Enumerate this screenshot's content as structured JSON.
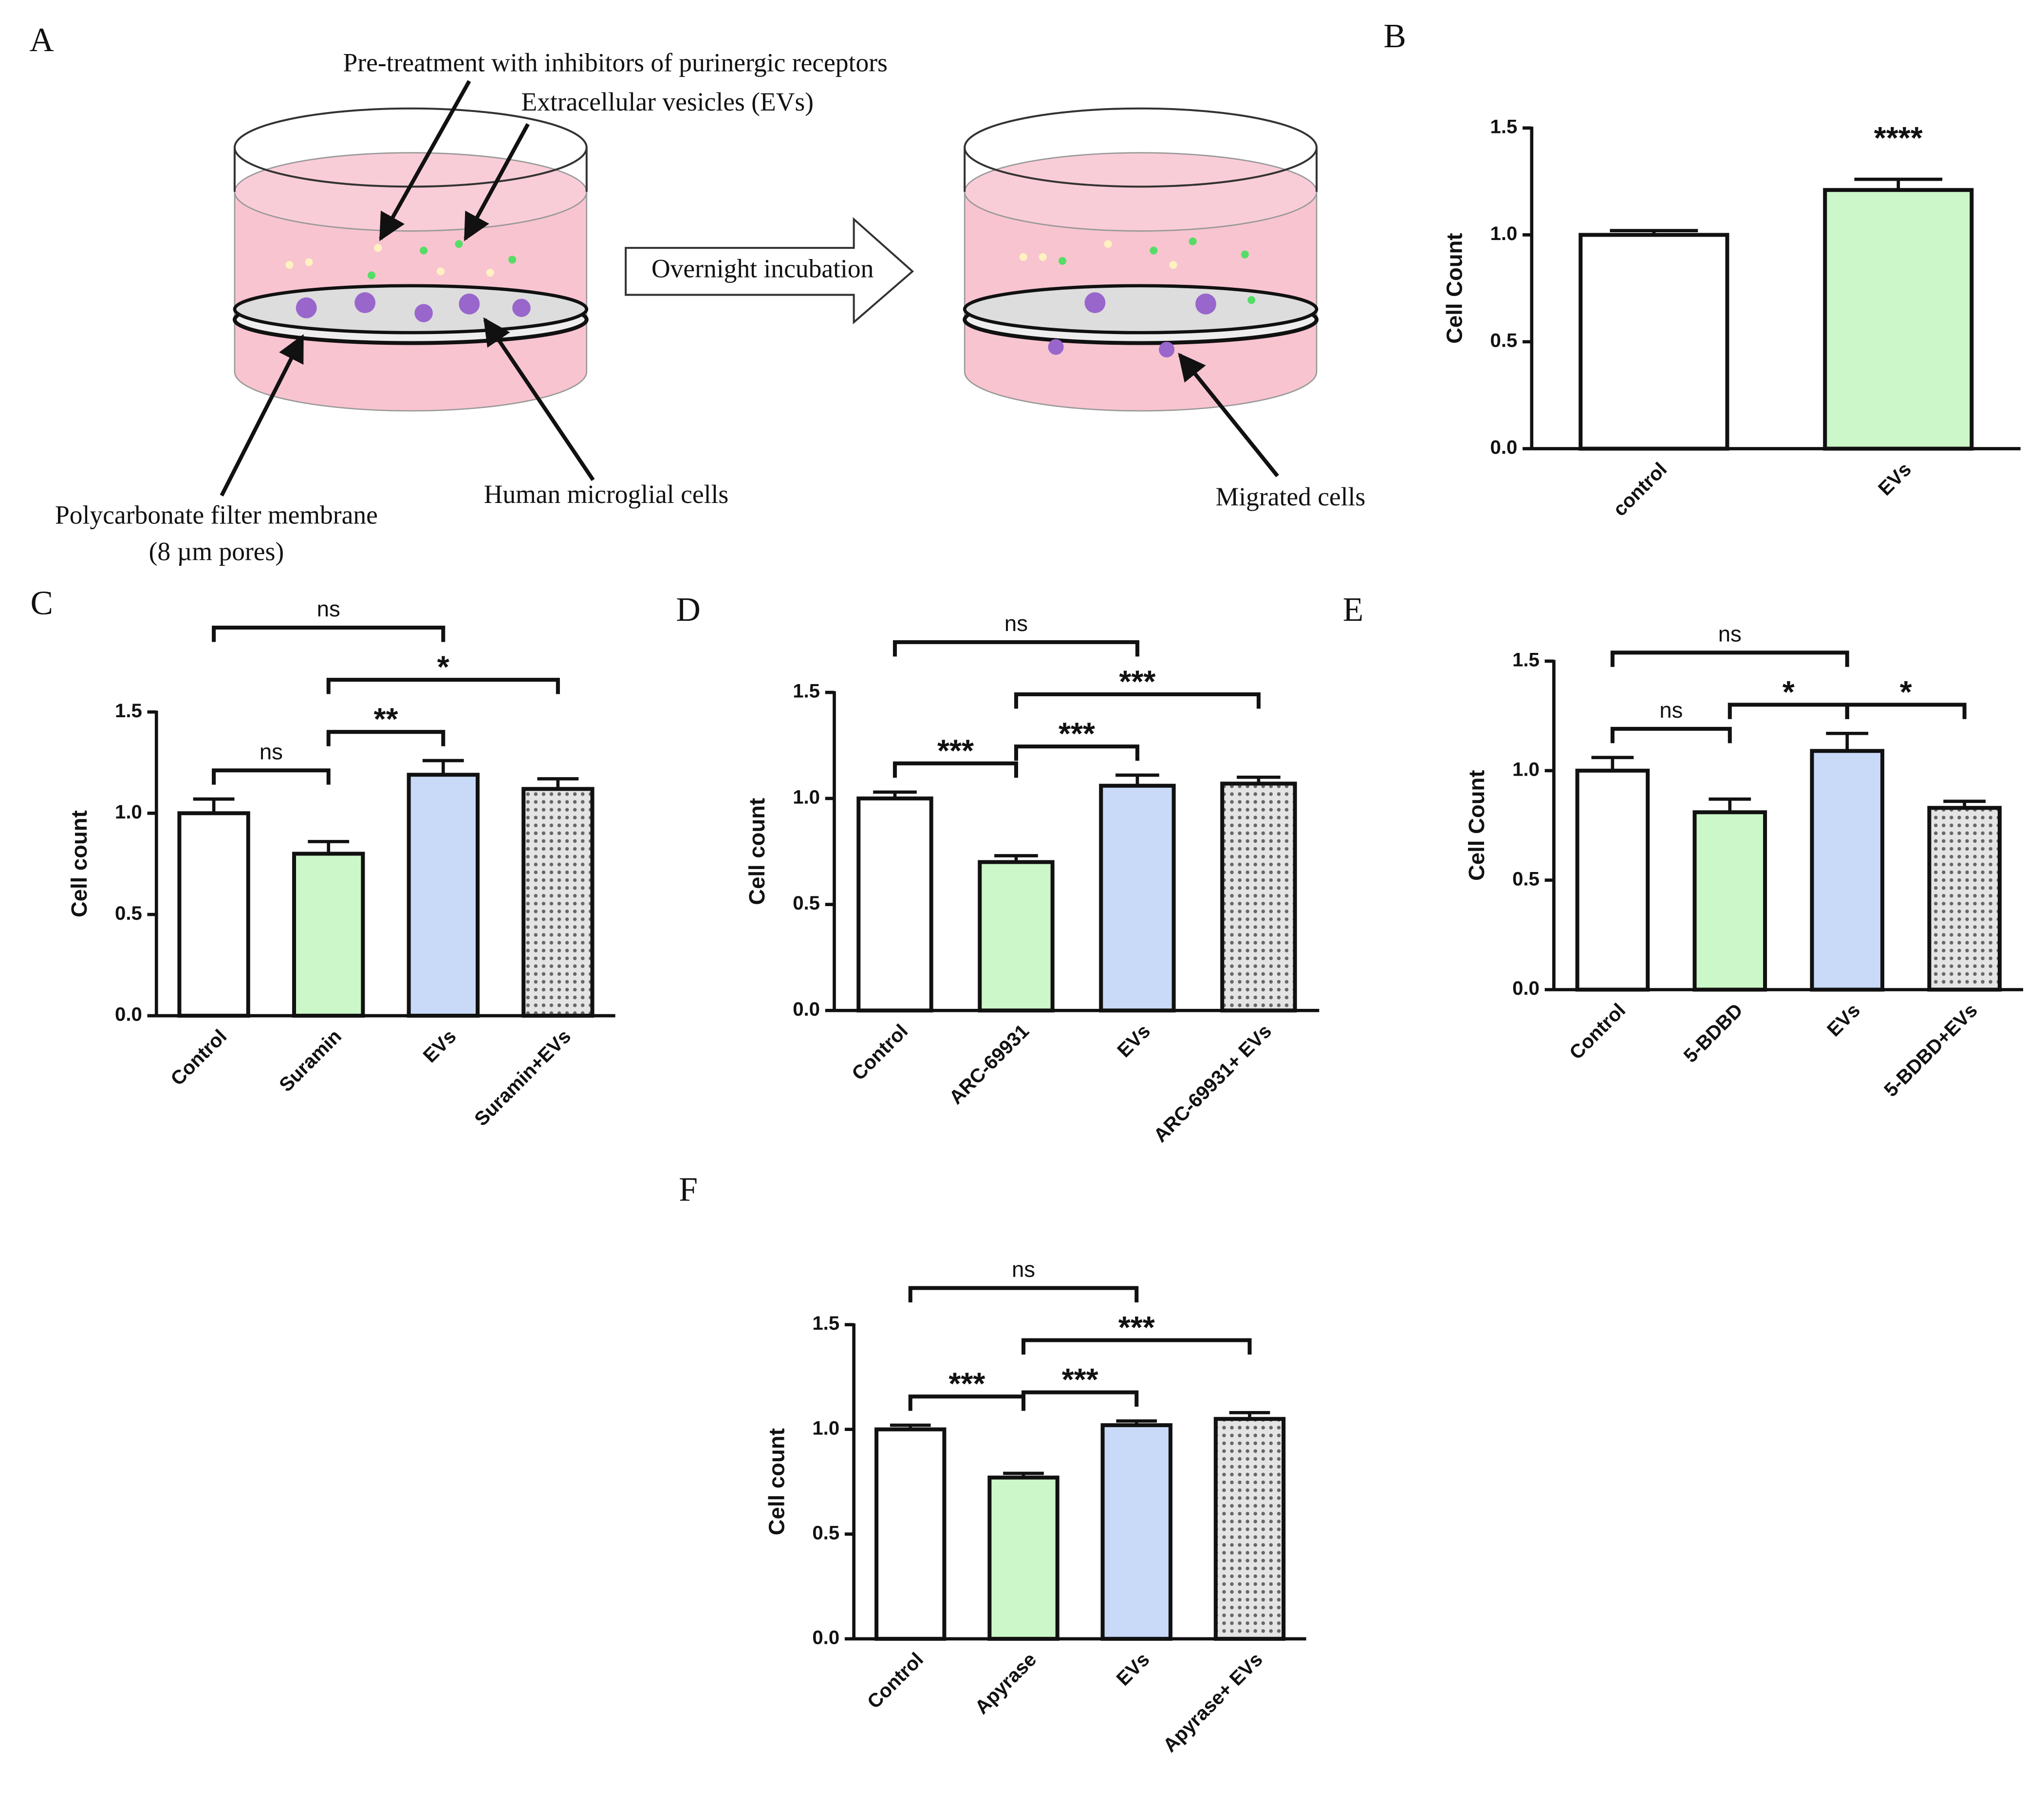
{
  "diagram": {
    "label": "A",
    "pretreatment": "Pre-treatment with inhibitors of purinergic receptors",
    "vesicles": "Extracellular vesicles (EVs)",
    "incubation": "Overnight incubation",
    "membrane": "Polycarbonate filter membrane",
    "pores": "(8 µm pores)",
    "cells": "Human microglial cells",
    "migrated": "Migrated cells"
  },
  "chart_data": [
    {
      "label": "B",
      "type": "bar",
      "y_label": "Cell Count",
      "categories": [
        "control",
        "EVs"
      ],
      "values": [
        1.0,
        1.21
      ],
      "errors": [
        0.02,
        0.05
      ],
      "colors": [
        "#ffffff",
        "#ccf7c8"
      ],
      "textured": [
        false,
        false
      ],
      "ylim": [
        0,
        1.5
      ],
      "yticks": [
        {
          "value": 0,
          "label": "0.0"
        },
        {
          "value": 0.5,
          "label": "0.5"
        },
        {
          "value": 1,
          "label": "1.0"
        },
        {
          "value": 1.5,
          "label": "1.5"
        }
      ],
      "comparisons": [
        {
          "label": "****",
          "from": 1,
          "to": 1
        }
      ]
    },
    {
      "label": "C",
      "type": "bar",
      "y_label": "Cell count",
      "categories": [
        "Control",
        "Suramin",
        "EVs",
        "Suramin+EVs"
      ],
      "values": [
        1.0,
        0.8,
        1.19,
        1.12
      ],
      "errors": [
        0.07,
        0.06,
        0.07,
        0.05
      ],
      "colors": [
        "#ffffff",
        "#ccf7c8",
        "#c8daf7",
        "#d4d4d4"
      ],
      "textured": [
        false,
        false,
        false,
        true
      ],
      "ylim": [
        0,
        1.5
      ],
      "yticks": [
        {
          "value": 0,
          "label": "0.0"
        },
        {
          "value": 0.5,
          "label": "0.5"
        },
        {
          "value": 1,
          "label": "1.0"
        },
        {
          "value": 1.5,
          "label": "1.5"
        }
      ],
      "comparisons": [
        {
          "label": "ns",
          "from": 0,
          "to": 1
        },
        {
          "label": "**",
          "from": 1,
          "to": 2
        },
        {
          "label": "*",
          "from": 1,
          "to": 3
        },
        {
          "label": "ns",
          "from": 0,
          "to": 2
        }
      ]
    },
    {
      "label": "D",
      "type": "bar",
      "y_label": "Cell count",
      "categories": [
        "Control",
        "ARC-69931",
        "EVs",
        "ARC-69931+ EVs"
      ],
      "values": [
        1.0,
        0.7,
        1.06,
        1.07
      ],
      "errors": [
        0.03,
        0.03,
        0.05,
        0.03
      ],
      "colors": [
        "#ffffff",
        "#ccf7c8",
        "#c8daf7",
        "#d4d4d4"
      ],
      "textured": [
        false,
        false,
        false,
        true
      ],
      "ylim": [
        0,
        1.5
      ],
      "yticks": [
        {
          "value": 0,
          "label": "0.0"
        },
        {
          "value": 0.5,
          "label": "0.5"
        },
        {
          "value": 1,
          "label": "1.0"
        },
        {
          "value": 1.5,
          "label": "1.5"
        }
      ],
      "comparisons": [
        {
          "label": "***",
          "from": 0,
          "to": 1
        },
        {
          "label": "***",
          "from": 1,
          "to": 2
        },
        {
          "label": "***",
          "from": 1,
          "to": 3
        },
        {
          "label": "ns",
          "from": 0,
          "to": 2
        }
      ]
    },
    {
      "label": "E",
      "type": "bar",
      "y_label": "Cell Count",
      "categories": [
        "Control",
        "5-BDBD",
        "EVs",
        "5-BDBD+EVs"
      ],
      "values": [
        1.0,
        0.81,
        1.09,
        0.83
      ],
      "errors": [
        0.06,
        0.06,
        0.08,
        0.03
      ],
      "colors": [
        "#ffffff",
        "#ccf7c8",
        "#c8daf7",
        "#d4d4d4"
      ],
      "textured": [
        false,
        false,
        false,
        true
      ],
      "ylim": [
        0,
        1.5
      ],
      "yticks": [
        {
          "value": 0,
          "label": "0.0"
        },
        {
          "value": 0.5,
          "label": "0.5"
        },
        {
          "value": 1,
          "label": "1.0"
        },
        {
          "value": 1.5,
          "label": "1.5"
        }
      ],
      "comparisons": [
        {
          "label": "ns",
          "from": 0,
          "to": 1
        },
        {
          "label": "*",
          "from": 1,
          "to": 2
        },
        {
          "label": "*",
          "from": 2,
          "to": 3
        },
        {
          "label": "ns",
          "from": 0,
          "to": 2
        }
      ]
    },
    {
      "label": "F",
      "type": "bar",
      "y_label": "Cell count",
      "categories": [
        "Control",
        "Apyrase",
        "EVs",
        "Apyrase+ EVs"
      ],
      "values": [
        1.0,
        0.77,
        1.02,
        1.05
      ],
      "errors": [
        0.02,
        0.02,
        0.02,
        0.03
      ],
      "colors": [
        "#ffffff",
        "#ccf7c8",
        "#c8daf7",
        "#d4d4d4"
      ],
      "textured": [
        false,
        false,
        false,
        true
      ],
      "ylim": [
        0,
        1.5
      ],
      "yticks": [
        {
          "value": 0,
          "label": "0.0"
        },
        {
          "value": 0.5,
          "label": "0.5"
        },
        {
          "value": 1,
          "label": "1.0"
        },
        {
          "value": 1.5,
          "label": "1.5"
        }
      ],
      "comparisons": [
        {
          "label": "***",
          "from": 0,
          "to": 1
        },
        {
          "label": "***",
          "from": 1,
          "to": 2
        },
        {
          "label": "***",
          "from": 1,
          "to": 3
        },
        {
          "label": "ns",
          "from": 0,
          "to": 2
        }
      ]
    }
  ]
}
